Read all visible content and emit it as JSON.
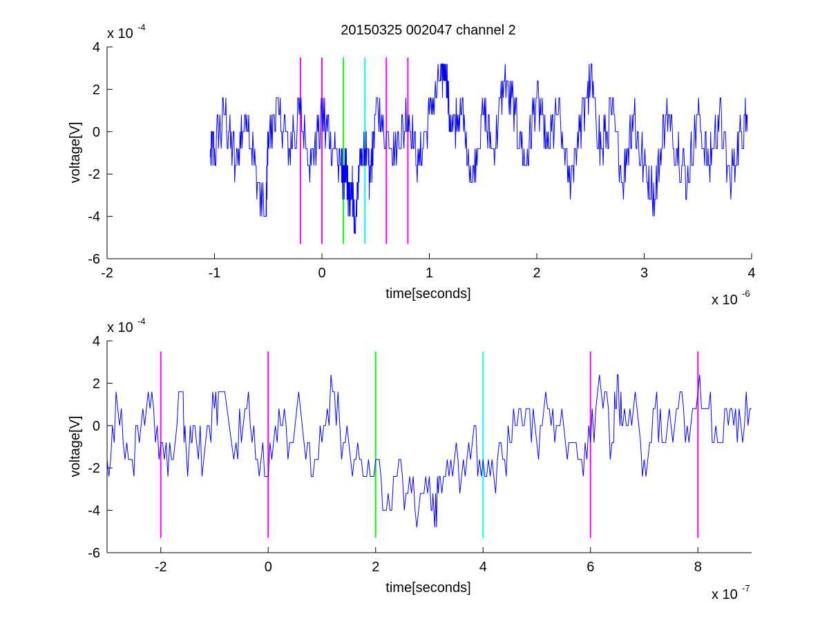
{
  "figure": {
    "title": "20150325 002047 channel 2"
  },
  "colors": {
    "signal": "#0000ff",
    "magenta": "#ff00ff",
    "green": "#00ff00",
    "cyan": "#00ffff",
    "axes": "#000000",
    "background": "#ffffff"
  },
  "chart_data": [
    {
      "type": "line",
      "title": "20150325 002047 channel 2",
      "xlabel": "time[seconds]",
      "ylabel": "voltage[V]",
      "x_exponent_text": "x 10",
      "x_exponent_power": "-6",
      "y_exponent_text": "x 10",
      "y_exponent_power": "-4",
      "xlim": [
        -2e-06,
        4e-06
      ],
      "ylim": [
        -0.0006,
        0.0004
      ],
      "xticks": [
        -2e-06,
        -1e-06,
        0,
        1e-06,
        2e-06,
        3e-06,
        4e-06
      ],
      "xtick_labels": [
        "-2",
        "-1",
        "0",
        "1",
        "2",
        "3",
        "4"
      ],
      "yticks": [
        -0.0006,
        -0.0004,
        -0.0002,
        0,
        0.0002,
        0.0004
      ],
      "ytick_labels": [
        "-6",
        "-4",
        "-2",
        "0",
        "2",
        "4"
      ],
      "grid": false,
      "legend": "none",
      "series": [
        {
          "color": "#0000ff",
          "x_start": -1.04e-06,
          "x_end": 3.96e-06,
          "x": [
            -1.04e-06,
            -1e-06,
            -9e-07,
            -8e-07,
            -7e-07,
            -6e-07,
            -5.2e-07,
            -5e-07,
            -4e-07,
            -3e-07,
            -2e-07,
            -1e-07,
            0,
            1e-07,
            1.8e-07,
            2e-07,
            2.2e-07,
            2.5e-07,
            2.8e-07,
            3.1e-07,
            3.5e-07,
            4e-07,
            4.5e-07,
            5e-07,
            6e-07,
            7e-07,
            8e-07,
            9e-07,
            1e-06,
            1.1e-06,
            1.15e-06,
            1.2e-06,
            1.3e-06,
            1.4e-06,
            1.5e-06,
            1.6e-06,
            1.7e-06,
            1.8e-06,
            1.9e-06,
            2e-06,
            2.1e-06,
            2.2e-06,
            2.3e-06,
            2.4e-06,
            2.5e-06,
            2.6e-06,
            2.7e-06,
            2.8e-06,
            2.9e-06,
            3e-06,
            3.1e-06,
            3.2e-06,
            3.3e-06,
            3.4e-06,
            3.5e-06,
            3.6e-06,
            3.7e-06,
            3.8e-06,
            3.9e-06,
            3.96e-06
          ],
          "y": [
            -0.00012,
            -8e-05,
            8e-05,
            -0.00016,
            8e-05,
            -0.00024,
            -0.0004,
            0,
            8e-05,
            -8e-05,
            8e-05,
            -0.00016,
            8e-05,
            -8e-05,
            -0.00016,
            -0.00024,
            -0.00016,
            -0.00032,
            -0.00024,
            -0.00048,
            -0.00016,
            -8e-05,
            -0.00024,
            8e-05,
            0,
            -8e-05,
            8e-05,
            -0.00016,
            8e-05,
            0.00024,
            0.00032,
            0,
            8e-05,
            -0.00024,
            8e-05,
            -8e-05,
            0.00024,
            8e-05,
            -0.00016,
            0.00016,
            -8e-05,
            8e-05,
            -0.00024,
            0,
            0.00024,
            -8e-05,
            8e-05,
            -0.00024,
            8e-05,
            -0.00016,
            -0.00032,
            8e-05,
            -8e-05,
            -0.00024,
            8e-05,
            -0.00016,
            8e-05,
            -0.00024,
            0,
            8e-05
          ]
        }
      ],
      "vlines": [
        {
          "x": -2e-07,
          "color": "#ff00ff"
        },
        {
          "x": 0,
          "color": "#ff00ff"
        },
        {
          "x": 2e-07,
          "color": "#00ff00"
        },
        {
          "x": 4e-07,
          "color": "#00ffff"
        },
        {
          "x": 6e-07,
          "color": "#ff00ff"
        },
        {
          "x": 8e-07,
          "color": "#ff00ff"
        }
      ],
      "vline_ylim": [
        -0.00053,
        0.00035
      ]
    },
    {
      "type": "line",
      "xlabel": "time[seconds]",
      "ylabel": "voltage[V]",
      "x_exponent_text": "x 10",
      "x_exponent_power": "-7",
      "y_exponent_text": "x 10",
      "y_exponent_power": "-4",
      "xlim": [
        -3e-07,
        9e-07
      ],
      "ylim": [
        -0.0006,
        0.0004
      ],
      "xticks": [
        -2e-07,
        0,
        2e-07,
        4e-07,
        6e-07,
        8e-07
      ],
      "xtick_labels": [
        "-2",
        "0",
        "2",
        "4",
        "6",
        "8"
      ],
      "yticks": [
        -0.0006,
        -0.0004,
        -0.0002,
        0,
        0.0002,
        0.0004
      ],
      "ytick_labels": [
        "-6",
        "-4",
        "-2",
        "0",
        "2",
        "4"
      ],
      "grid": false,
      "legend": "none",
      "series": [
        {
          "color": "#0000ff",
          "x": [
            -3e-07,
            -2.8e-07,
            -2.6e-07,
            -2.4e-07,
            -2.2e-07,
            -2e-07,
            -1.8e-07,
            -1.6e-07,
            -1.5e-07,
            -1.4e-07,
            -1.2e-07,
            -1e-07,
            -8.5e-08,
            -6e-08,
            -4e-08,
            -2e-08,
            0,
            2e-08,
            4e-08,
            6e-08,
            8e-08,
            1e-07,
            1.2e-07,
            1.4e-07,
            1.6e-07,
            1.8e-07,
            2e-07,
            2.2e-07,
            2.4e-07,
            2.6e-07,
            2.8e-07,
            3e-07,
            3.1e-07,
            3.2e-07,
            3.4e-07,
            3.6e-07,
            3.8e-07,
            4e-07,
            4.2e-07,
            4.4e-07,
            4.6e-07,
            4.8e-07,
            5e-07,
            5.2e-07,
            5.4e-07,
            5.6e-07,
            5.8e-07,
            6e-07,
            6.2e-07,
            6.4e-07,
            6.5e-07,
            6.6e-07,
            6.8e-07,
            7e-07,
            7.2e-07,
            7.4e-07,
            7.6e-07,
            7.8e-07,
            8e-07,
            8.2e-07,
            8.4e-07,
            8.6e-07,
            8.8e-07,
            9e-07
          ],
          "y": [
            -0.00016,
            8e-05,
            -0.00016,
            -8e-05,
            8e-05,
            -8e-05,
            -0.00016,
            0.00016,
            -0.00024,
            0,
            -0.00016,
            8e-05,
            0.00016,
            -8e-05,
            8e-05,
            -0.00016,
            -0.00024,
            8e-05,
            -8e-05,
            8e-05,
            -0.00024,
            -8e-05,
            0.00016,
            -8e-05,
            -0.00016,
            -0.00024,
            -0.00016,
            -0.0004,
            -0.00024,
            -0.00032,
            -0.0004,
            -0.00024,
            -0.00048,
            -0.00024,
            -0.00016,
            -0.00024,
            -8e-05,
            -0.00016,
            -0.00024,
            -0.00016,
            0,
            8e-05,
            -8e-05,
            8e-05,
            0,
            -8e-05,
            -0.00016,
            -8e-05,
            0.00016,
            -8e-05,
            0.00024,
            0,
            8e-05,
            -0.00016,
            8e-05,
            -8e-05,
            8e-05,
            0,
            0.00016,
            8e-05,
            -8e-05,
            8e-05,
            0,
            8e-05
          ]
        }
      ],
      "vlines": [
        {
          "x": -2e-07,
          "color": "#ff00ff"
        },
        {
          "x": 0,
          "color": "#ff00ff"
        },
        {
          "x": 2e-07,
          "color": "#00ff00"
        },
        {
          "x": 4e-07,
          "color": "#00ffff"
        },
        {
          "x": 6e-07,
          "color": "#ff00ff"
        },
        {
          "x": 8e-07,
          "color": "#ff00ff"
        }
      ],
      "vline_ylim": [
        -0.00053,
        0.00035
      ]
    }
  ]
}
